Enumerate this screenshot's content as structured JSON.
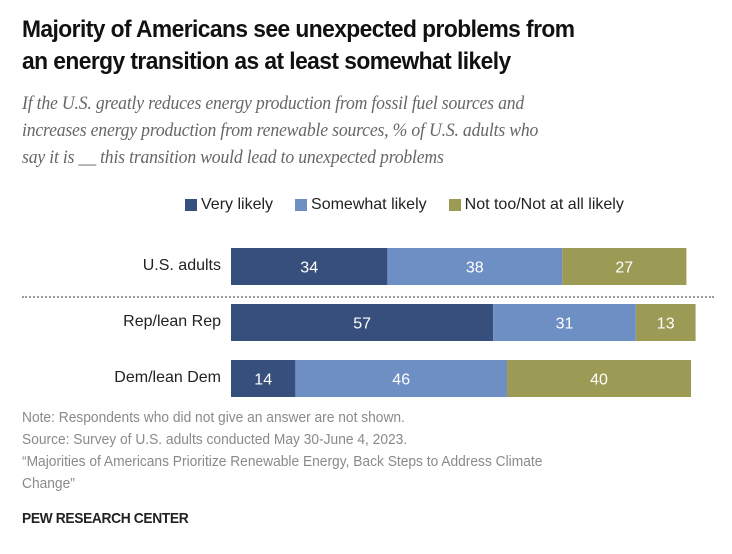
{
  "header": {
    "title_line1": "Majority of Americans see unexpected problems from",
    "title_line2": "an energy transition as at least somewhat likely",
    "subtitle_line1": "If the U.S. greatly reduces energy production from fossil fuel sources and",
    "subtitle_line2": "increases energy production from renewable sources, % of U.S. adults who",
    "subtitle_line3": "say it is __ this transition would lead to unexpected problems"
  },
  "chart_data": {
    "type": "bar",
    "orientation": "horizontal-stacked",
    "title": "Majority of Americans see unexpected problems from an energy transition as at least somewhat likely",
    "subtitle": "If the U.S. greatly reduces energy production from fossil fuel sources and increases energy production from renewable sources, % of U.S. adults who say it is __ this transition would lead to unexpected problems",
    "categories": [
      "U.S. adults",
      "Rep/lean Rep",
      "Dem/lean Dem"
    ],
    "series": [
      {
        "name": "Very likely",
        "color": "#364f7c",
        "values": [
          34,
          57,
          14
        ]
      },
      {
        "name": "Somewhat likely",
        "color": "#6d8fc4",
        "values": [
          38,
          31,
          46
        ]
      },
      {
        "name": "Not too/Not at all likely",
        "color": "#9c9b55",
        "values": [
          27,
          13,
          40
        ]
      }
    ],
    "xlim": [
      0,
      100
    ],
    "xlabel": "",
    "ylabel": "",
    "grid": false,
    "legend_position": "top",
    "separator_after_category": "U.S. adults"
  },
  "legend": [
    {
      "label": "Very likely",
      "color": "#364f7c"
    },
    {
      "label": "Somewhat likely",
      "color": "#6d8fc4"
    },
    {
      "label": "Not too/Not at all likely",
      "color": "#9c9b55"
    }
  ],
  "footer": {
    "note": "Note: Respondents who did not give an answer are not shown.",
    "source": "Source: Survey of U.S. adults conducted May 30-June 4, 2023.",
    "report_line1": "“Majorities of Americans Prioritize Renewable Energy, Back Steps to Address Climate",
    "report_line2": "Change”",
    "brand": "PEW RESEARCH CENTER"
  }
}
